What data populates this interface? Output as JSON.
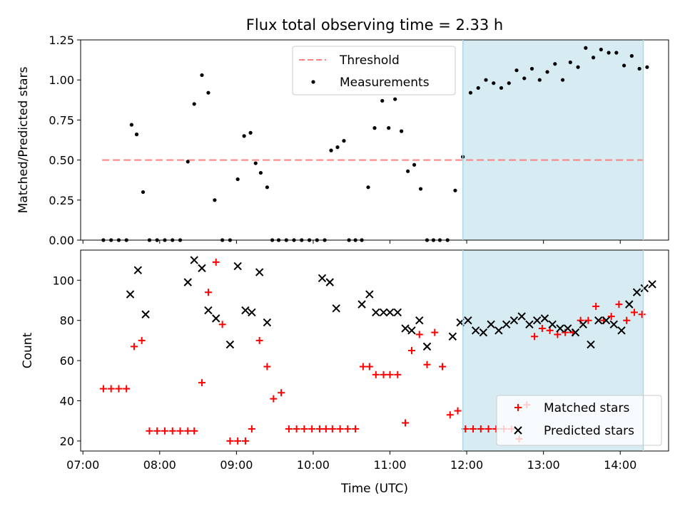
{
  "chart_data": {
    "type": "scatter",
    "title": "Flux total observing time = 2.33 h",
    "xlabel": "Time (UTC)",
    "x_ticks": [
      "07:00",
      "08:00",
      "09:00",
      "10:00",
      "11:00",
      "12:00",
      "13:00",
      "14:00"
    ],
    "xlim_hours": [
      6.97,
      14.63
    ],
    "shaded_region_hours": [
      11.95,
      14.3
    ],
    "colors": {
      "shade": "#add8e6",
      "threshold": "#ff8080",
      "matched": "#ff0000",
      "predicted": "#000000",
      "measurements": "#000000"
    },
    "panels": [
      {
        "ylabel": "Matched/Predicted stars",
        "ylim": [
          0,
          1.25
        ],
        "y_ticks": [
          "0.00",
          "0.25",
          "0.50",
          "0.75",
          "1.00",
          "1.25"
        ],
        "legend": {
          "placement": "upper center",
          "entries": [
            "Threshold",
            "Measurements"
          ]
        },
        "threshold": {
          "name": "Threshold",
          "value": 0.5,
          "x_range_hours": [
            7.25,
            14.3
          ]
        },
        "series": [
          {
            "name": "Measurements",
            "x": [
              "07:16",
              "07:22",
              "07:28",
              "07:34",
              "07:38",
              "07:42",
              "07:47",
              "07:52",
              "07:58",
              "08:04",
              "08:10",
              "08:16",
              "08:22",
              "08:27",
              "08:33",
              "08:38",
              "08:43",
              "08:49",
              "08:55",
              "09:01",
              "09:06",
              "09:11",
              "09:15",
              "09:19",
              "09:24",
              "09:28",
              "09:33",
              "09:39",
              "09:45",
              "09:51",
              "09:57",
              "10:03",
              "10:09",
              "10:14",
              "10:19",
              "10:24",
              "10:28",
              "10:33",
              "10:38",
              "10:43",
              "10:48",
              "10:54",
              "10:59",
              "11:04",
              "11:09",
              "11:14",
              "11:19",
              "11:24",
              "11:29",
              "11:34",
              "11:39",
              "11:45",
              "11:51",
              "11:57",
              "12:03",
              "12:09",
              "12:15",
              "12:21",
              "12:27",
              "12:33",
              "12:39",
              "12:45",
              "12:51",
              "12:57",
              "13:03",
              "13:09",
              "13:15",
              "13:21",
              "13:27",
              "13:33",
              "13:39",
              "13:45",
              "13:51",
              "13:57",
              "14:03",
              "14:09",
              "14:15",
              "14:21"
            ],
            "y": [
              0,
              0,
              0,
              0,
              0.72,
              0.66,
              0.3,
              0,
              0,
              0,
              0,
              0,
              0.49,
              0.85,
              1.03,
              0.92,
              0.25,
              0,
              0,
              0.38,
              0.65,
              0.67,
              0.48,
              0.42,
              0.33,
              0,
              0,
              0,
              0,
              0,
              0,
              0,
              0,
              0.56,
              0.58,
              0.62,
              0,
              0,
              0,
              0.33,
              0.7,
              0.87,
              0.7,
              0.88,
              0.68,
              0.43,
              0.47,
              0.32,
              0,
              0,
              0,
              0,
              0.31,
              0.52,
              0.92,
              0.95,
              1.0,
              0.98,
              0.95,
              0.98,
              1.06,
              1.01,
              1.07,
              1.0,
              1.05,
              1.1,
              1.0,
              1.11,
              1.08,
              1.2,
              1.14,
              1.19,
              1.17,
              1.17,
              1.09,
              1.15,
              1.07,
              1.08
            ]
          }
        ]
      },
      {
        "ylabel": "Count",
        "ylim": [
          15,
          115
        ],
        "y_ticks": [
          "20",
          "40",
          "60",
          "80",
          "100"
        ],
        "legend": {
          "placement": "lower right",
          "entries": [
            "Matched stars",
            "Predicted stars"
          ]
        },
        "series": [
          {
            "name": "Matched stars",
            "marker": "plus",
            "x": [
              "07:16",
              "07:22",
              "07:28",
              "07:34",
              "07:40",
              "07:46",
              "07:52",
              "07:58",
              "08:04",
              "08:10",
              "08:16",
              "08:22",
              "08:27",
              "08:33",
              "08:38",
              "08:44",
              "08:49",
              "08:55",
              "09:01",
              "09:07",
              "09:12",
              "09:18",
              "09:24",
              "09:29",
              "09:35",
              "09:41",
              "09:47",
              "09:53",
              "09:59",
              "10:05",
              "10:10",
              "10:15",
              "10:21",
              "10:27",
              "10:33",
              "10:39",
              "10:44",
              "10:49",
              "10:55",
              "11:00",
              "11:06",
              "11:12",
              "11:17",
              "11:23",
              "11:29",
              "11:35",
              "11:41",
              "11:47",
              "11:53",
              "11:59",
              "12:05",
              "12:11",
              "12:17",
              "12:23",
              "12:29",
              "12:35",
              "12:41",
              "12:47",
              "12:53",
              "12:59",
              "13:05",
              "13:11",
              "13:17",
              "13:23",
              "13:29",
              "13:35",
              "13:41",
              "13:47",
              "13:53",
              "13:59",
              "14:05",
              "14:11",
              "14:17"
            ],
            "y": [
              46,
              46,
              46,
              46,
              67,
              70,
              25,
              25,
              25,
              25,
              25,
              25,
              25,
              49,
              94,
              109,
              78,
              20,
              20,
              20,
              26,
              70,
              57,
              41,
              44,
              26,
              26,
              26,
              26,
              26,
              26,
              26,
              26,
              26,
              26,
              57,
              57,
              53,
              53,
              53,
              53,
              29,
              65,
              73,
              58,
              74,
              57,
              33,
              35,
              26,
              26,
              26,
              26,
              26,
              26,
              26,
              21,
              38,
              72,
              76,
              75,
              73,
              74,
              74,
              80,
              80,
              87,
              80,
              82,
              88,
              80,
              84,
              83
            ]
          },
          {
            "name": "Predicted stars",
            "marker": "x",
            "x": [
              "07:37",
              "07:43",
              "07:49",
              "08:22",
              "08:27",
              "08:33",
              "08:38",
              "08:44",
              "08:55",
              "09:01",
              "09:07",
              "09:12",
              "09:18",
              "09:24",
              "10:07",
              "10:13",
              "10:18",
              "10:38",
              "10:44",
              "10:49",
              "10:55",
              "11:00",
              "11:06",
              "11:12",
              "11:17",
              "11:23",
              "11:29",
              "11:49",
              "11:55",
              "12:01",
              "12:07",
              "12:13",
              "12:19",
              "12:25",
              "12:31",
              "12:37",
              "12:43",
              "12:49",
              "12:55",
              "13:01",
              "13:07",
              "13:13",
              "13:19",
              "13:25",
              "13:31",
              "13:37",
              "13:43",
              "13:49",
              "13:55",
              "14:01",
              "14:07",
              "14:13",
              "14:19",
              "14:25"
            ],
            "y": [
              93,
              105,
              83,
              99,
              110,
              106,
              85,
              81,
              68,
              107,
              85,
              84,
              104,
              79,
              101,
              99,
              86,
              88,
              93,
              84,
              84,
              84,
              84,
              76,
              75,
              80,
              67,
              72,
              79,
              80,
              75,
              74,
              78,
              75,
              78,
              80,
              82,
              78,
              80,
              81,
              78,
              76,
              76,
              74,
              78,
              68,
              80,
              80,
              78,
              75,
              88,
              94,
              96,
              98
            ]
          }
        ]
      }
    ]
  }
}
